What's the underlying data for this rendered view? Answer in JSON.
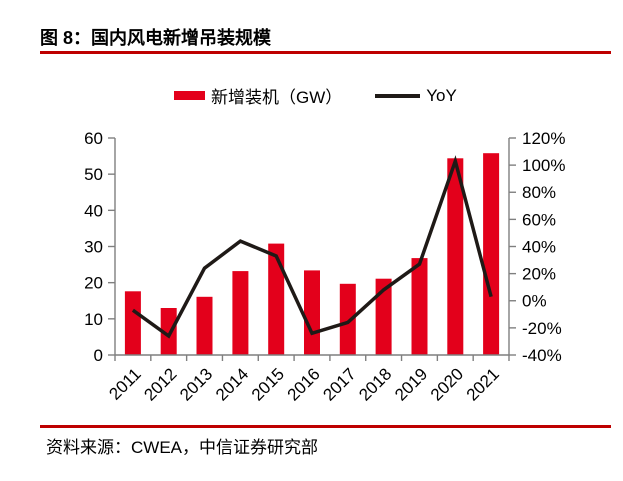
{
  "title": "图 8：国内风电新增吊装规模",
  "source": "资料来源：CWEA，中信证券研究部",
  "legend": {
    "bar_label": "新增装机（GW）",
    "line_label": "YoY"
  },
  "colors": {
    "bar": "#E3001B",
    "line": "#1F1A17",
    "rule": "#BE0000",
    "axis": "#7F7F7F",
    "text": "#000000"
  },
  "chart_data": {
    "type": "bar",
    "subtype": "combo-bar-line-dual-axis",
    "title": "图 8：国内风电新增吊装规模",
    "categories": [
      "2011",
      "2012",
      "2013",
      "2014",
      "2015",
      "2016",
      "2017",
      "2018",
      "2019",
      "2020",
      "2021"
    ],
    "series": [
      {
        "name": "新增装机（GW）",
        "type": "bar",
        "yaxis": "left",
        "unit": "GW",
        "values": [
          17.6,
          13.0,
          16.1,
          23.2,
          30.8,
          23.4,
          19.7,
          21.1,
          26.8,
          54.4,
          55.8
        ]
      },
      {
        "name": "YoY",
        "type": "line",
        "yaxis": "right",
        "unit": "%",
        "values": [
          -7,
          -26,
          24,
          44,
          33,
          -24,
          -16,
          8,
          27,
          103,
          3
        ]
      }
    ],
    "left_axis": {
      "min": 0,
      "max": 60,
      "step": 10,
      "format": "number"
    },
    "right_axis": {
      "min": -40,
      "max": 120,
      "step": 20,
      "format": "percent"
    },
    "x_label_rotation_deg": -45,
    "grid": false,
    "legend_position": "top-center"
  }
}
